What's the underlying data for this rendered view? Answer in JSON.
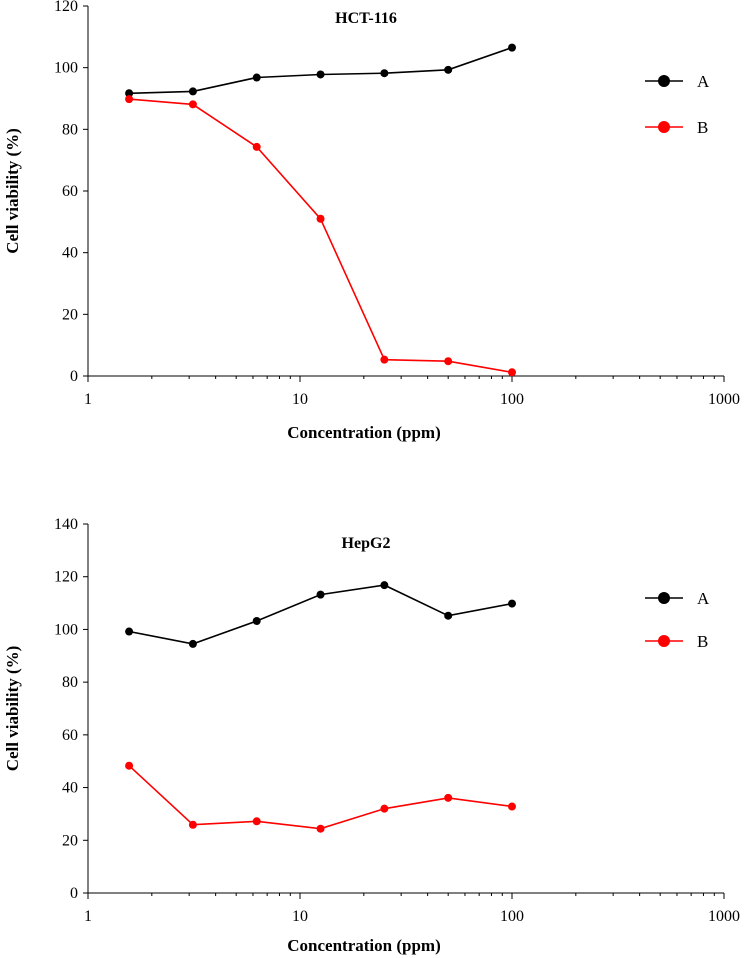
{
  "chart_data": [
    {
      "type": "line",
      "title": "HCT-116",
      "xlabel": "Concentration (ppm)",
      "ylabel": "Cell viability (%)",
      "xscale": "log",
      "xlim": [
        1,
        1000
      ],
      "ylim": [
        0,
        120
      ],
      "xticks": [
        1,
        10,
        100,
        1000
      ],
      "xtick_labels": [
        "1",
        "10",
        "100",
        "1000"
      ],
      "yticks": [
        0,
        20,
        40,
        60,
        80,
        100,
        120
      ],
      "ytick_labels": [
        "0",
        "20",
        "40",
        "60",
        "80",
        "100",
        "120"
      ],
      "grid": false,
      "legend_position": "right",
      "x": [
        1.5625,
        3.125,
        6.25,
        12.5,
        25,
        50,
        100
      ],
      "series": [
        {
          "name": "A",
          "color": "#000000",
          "values": [
            91.7,
            92.3,
            96.8,
            97.8,
            98.2,
            99.3,
            106.5
          ]
        },
        {
          "name": "B",
          "color": "#ff0000",
          "values": [
            89.8,
            88.1,
            74.3,
            51.0,
            5.3,
            4.8,
            1.2
          ]
        }
      ]
    },
    {
      "type": "line",
      "title": "HepG2",
      "xlabel": "Concentration (ppm)",
      "ylabel": "Cell viability (%)",
      "xscale": "log",
      "xlim": [
        1,
        1000
      ],
      "ylim": [
        0,
        140
      ],
      "xticks": [
        1,
        10,
        100,
        1000
      ],
      "xtick_labels": [
        "1",
        "10",
        "100",
        "1000"
      ],
      "yticks": [
        0,
        20,
        40,
        60,
        80,
        100,
        120,
        140
      ],
      "ytick_labels": [
        "0",
        "20",
        "40",
        "60",
        "80",
        "100",
        "120",
        "140"
      ],
      "grid": false,
      "legend_position": "right",
      "x": [
        1.5625,
        3.125,
        6.25,
        12.5,
        25,
        50,
        100
      ],
      "series": [
        {
          "name": "A",
          "color": "#000000",
          "values": [
            99.2,
            94.5,
            103.2,
            113.2,
            116.8,
            105.2,
            109.8
          ]
        },
        {
          "name": "B",
          "color": "#ff0000",
          "values": [
            48.3,
            25.9,
            27.2,
            24.4,
            32.0,
            36.1,
            32.8
          ]
        }
      ]
    }
  ]
}
